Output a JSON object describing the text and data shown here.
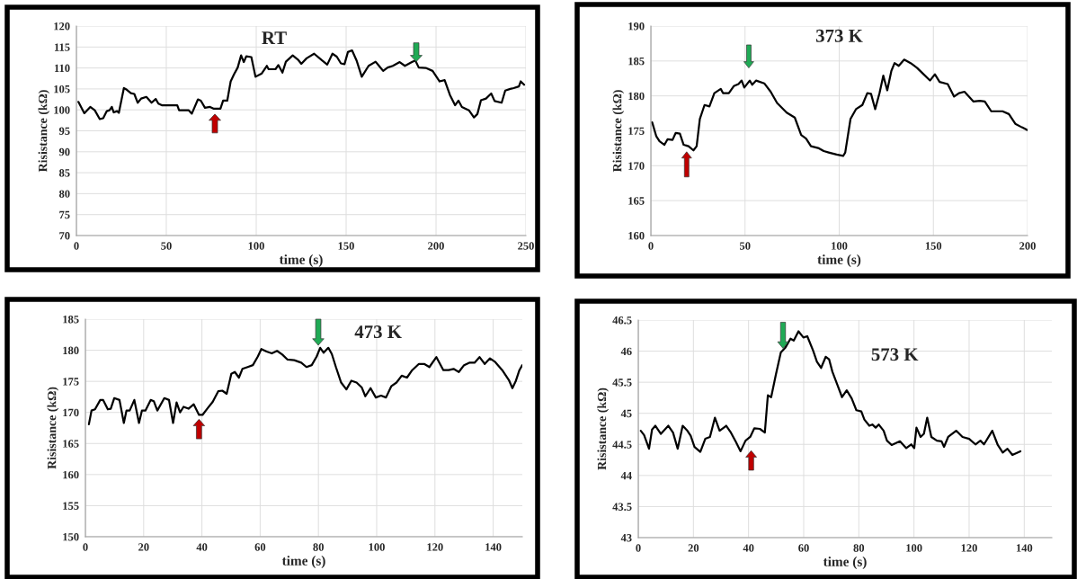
{
  "chart_data": [
    {
      "type": "line",
      "title": "RT",
      "xlabel": "time (s)",
      "ylabel": "Risistance (kΩ)",
      "color": "#000000",
      "grid": true,
      "xlim": [
        0,
        250
      ],
      "xticks": [
        0,
        50,
        100,
        150,
        200,
        250
      ],
      "ylim": [
        70,
        120
      ],
      "yticks": [
        70,
        75,
        80,
        85,
        90,
        95,
        100,
        105,
        110,
        115,
        120
      ],
      "x": [
        1.1,
        4.4,
        7.7,
        10.2,
        13,
        14.9,
        16.9,
        18.4,
        19.7,
        20.7,
        22.6,
        23.6,
        26.4,
        28,
        30.3,
        32.2,
        34.1,
        36,
        38.9,
        41.8,
        44.1,
        45.6,
        47.5,
        56.1,
        57.1,
        62.5,
        64.2,
        67.6,
        69.2,
        71.5,
        74.3,
        76.2,
        80.1,
        81.6,
        83.9,
        85.8,
        87.7,
        89.7,
        91.6,
        93.1,
        94.5,
        97.3,
        99.6,
        103.1,
        105.9,
        106.9,
        110.7,
        112.3,
        114.6,
        116.5,
        120.3,
        123.2,
        125.1,
        128,
        132.2,
        136.6,
        139.5,
        142.4,
        144.8,
        147.1,
        149.1,
        151,
        153.3,
        155.8,
        158.7,
        162.5,
        166.4,
        168.3,
        170.6,
        173.1,
        176,
        179.8,
        182.7,
        186.6,
        188.5,
        190.4,
        194.3,
        198.1,
        202,
        204.8,
        207.7,
        210.6,
        212.5,
        214.4,
        218.3,
        221.1,
        223,
        225,
        227.8,
        230.7,
        232.6,
        236.5,
        238.5,
        241.3,
        243.2,
        246.1,
        247.1,
        249
      ],
      "values": [
        101.9,
        99.2,
        100.7,
        99.9,
        97.8,
        98,
        99.7,
        99.9,
        100.7,
        99.4,
        99.7,
        99.3,
        105.2,
        104.8,
        104,
        103.8,
        101.7,
        102.7,
        103.1,
        101.7,
        102.6,
        101.5,
        101.1,
        101.1,
        99.9,
        99.9,
        99.1,
        102.5,
        102.2,
        100.5,
        100.7,
        100.3,
        100.3,
        102.2,
        102.2,
        106.8,
        108.5,
        110.1,
        113,
        111.4,
        112.8,
        112.6,
        107.9,
        108.7,
        110.5,
        109.7,
        109.7,
        110.7,
        108.9,
        111.5,
        113,
        112,
        111,
        112.3,
        113.4,
        111.8,
        110.8,
        113.4,
        112.7,
        111.1,
        110.9,
        113.8,
        114.2,
        111.8,
        107.9,
        110.5,
        111.5,
        110.5,
        109.3,
        110.1,
        110.5,
        111.4,
        110.5,
        111.4,
        111.8,
        110.1,
        110,
        109.3,
        106.8,
        107.1,
        103.6,
        101.1,
        102.2,
        100.7,
        99.9,
        98.2,
        99,
        102.3,
        102.7,
        103.9,
        102.1,
        101.7,
        104.6,
        105,
        105.2,
        105.6,
        106.8,
        106
      ]
    },
    {
      "type": "line",
      "title": "373 K",
      "xlabel": "time (s)",
      "ylabel": "Risistance (kΩ)",
      "color": "#000000",
      "grid": true,
      "xlim": [
        0,
        200
      ],
      "xticks": [
        0,
        50,
        100,
        150,
        200
      ],
      "ylim": [
        160,
        190
      ],
      "yticks": [
        160,
        165,
        170,
        175,
        180,
        185,
        190
      ],
      "x": [
        0.7,
        2.9,
        4.6,
        7.2,
        8.9,
        11.5,
        13.2,
        15.4,
        17.4,
        20,
        22.6,
        24.3,
        26,
        28.5,
        31.1,
        33.7,
        37.1,
        38.3,
        41.4,
        44,
        46.5,
        48.2,
        49.6,
        52.5,
        53.8,
        55.9,
        60.2,
        63.6,
        67,
        72.1,
        76.4,
        79.8,
        82.4,
        85,
        89.2,
        91.8,
        94.4,
        98.6,
        102.1,
        103.2,
        106,
        108.9,
        112.3,
        114.9,
        116.9,
        119.1,
        121.4,
        123.4,
        125.5,
        127.7,
        129.4,
        131.6,
        134.5,
        137.9,
        141.4,
        144.8,
        148.2,
        150.8,
        153.3,
        157.6,
        161,
        163.6,
        166.5,
        171.3,
        174.7,
        177.3,
        180.7,
        183.2,
        186.7,
        190.1,
        193.5,
        197,
        200
      ],
      "values": [
        176.2,
        174.2,
        173.5,
        173,
        173.8,
        173.7,
        174.7,
        174.6,
        173,
        172.8,
        172.2,
        172.8,
        176.7,
        178.7,
        178.5,
        180.4,
        181,
        180.4,
        180.4,
        181.4,
        181.7,
        182.2,
        181.2,
        182.2,
        181.6,
        182.2,
        181.8,
        180.6,
        179,
        177.6,
        176.9,
        174.4,
        173.9,
        172.8,
        172.5,
        172.1,
        171.9,
        171.6,
        171.4,
        171.9,
        176.7,
        178.1,
        178.7,
        180.4,
        180.3,
        178.1,
        180.4,
        182.9,
        180.8,
        183.6,
        184.7,
        184.3,
        185.2,
        184.7,
        184,
        183.1,
        182.2,
        183.1,
        182,
        181.7,
        179.9,
        180.4,
        180.6,
        179.2,
        179.3,
        179.2,
        177.8,
        177.8,
        177.8,
        177.4,
        176,
        175.5,
        175.1
      ]
    },
    {
      "type": "line",
      "title": "473 K",
      "xlabel": "time (s)",
      "ylabel": "Risistance (kΩ)",
      "color": "#000000",
      "grid": true,
      "xlim": [
        0,
        150
      ],
      "xticks": [
        0,
        20,
        40,
        60,
        80,
        100,
        120,
        140
      ],
      "ylim": [
        150,
        185
      ],
      "yticks": [
        150,
        155,
        160,
        165,
        170,
        175,
        180,
        185
      ],
      "x": [
        1.2,
        2.1,
        3.3,
        5.1,
        6.1,
        7.7,
        8.7,
        9.9,
        11.7,
        13.2,
        14.1,
        15.2,
        16.8,
        18.4,
        19.4,
        20.6,
        22.4,
        23.5,
        24.7,
        27.1,
        28.7,
        30.1,
        31.3,
        32.5,
        33.7,
        35.4,
        37.2,
        39,
        40.2,
        42,
        43.7,
        45.6,
        47,
        48.5,
        50.1,
        51.3,
        52.7,
        53.9,
        55.7,
        57.5,
        59.2,
        60.4,
        62.2,
        64,
        65.8,
        67.6,
        69.4,
        71.7,
        74.1,
        75.9,
        77.7,
        79.4,
        80.6,
        81.8,
        83.4,
        84.6,
        86,
        87.8,
        89.6,
        91.3,
        93.1,
        94.9,
        96.1,
        97.9,
        99.7,
        101.5,
        103.2,
        105,
        106.8,
        108.6,
        110.4,
        112.2,
        114.5,
        116.3,
        118.1,
        120.5,
        122.9,
        124.7,
        126.4,
        128.2,
        130,
        131.8,
        133.6,
        135.3,
        137.1,
        138.9,
        140.7,
        143.1,
        145.4,
        146.6,
        147.8,
        149,
        150
      ],
      "values": [
        168.1,
        170.3,
        170.5,
        172,
        172,
        170.5,
        170.6,
        172.3,
        172,
        168.3,
        170.3,
        170.3,
        172,
        168.3,
        170.3,
        170.3,
        172,
        171.8,
        170.3,
        172.3,
        172,
        168.3,
        171.6,
        170,
        170.9,
        170.6,
        171.3,
        169.6,
        169.6,
        170.7,
        171.7,
        173.4,
        173.5,
        173,
        176.2,
        176.5,
        175.6,
        177,
        177.3,
        177.6,
        179,
        180.2,
        179.8,
        179.5,
        179.9,
        179.3,
        178.5,
        178.4,
        178,
        177.3,
        177.6,
        179,
        180.4,
        179.6,
        180.4,
        179.4,
        177.3,
        174.8,
        173.7,
        175.1,
        174.8,
        174,
        172.6,
        173.9,
        172.4,
        172.7,
        172.4,
        174.2,
        174.8,
        175.9,
        175.6,
        176.8,
        177.8,
        177.8,
        177.3,
        178.9,
        176.8,
        176.8,
        177,
        176.5,
        177.6,
        178,
        178,
        178.9,
        177.8,
        178.7,
        178.1,
        176.8,
        175.2,
        173.9,
        175.1,
        176.8,
        177.6
      ]
    },
    {
      "type": "line",
      "title": "573 K",
      "xlabel": "time (s)",
      "ylabel": "Risistance (kΩ)",
      "color": "#000000",
      "grid": true,
      "xlim": [
        0,
        150
      ],
      "xticks": [
        0,
        20,
        40,
        60,
        80,
        100,
        120,
        140
      ],
      "ylim": [
        43,
        46.5
      ],
      "yticks": [
        43,
        43.5,
        44,
        44.5,
        45,
        45.5,
        46,
        46.5
      ],
      "x": [
        0.9,
        2.1,
        3.9,
        5,
        6.2,
        8.2,
        10.9,
        12.6,
        14.3,
        16.1,
        17.8,
        19,
        20.4,
        22.5,
        24.3,
        26,
        27.8,
        29.5,
        31.9,
        33.6,
        35.4,
        37.1,
        38.9,
        40.6,
        42.1,
        44.1,
        45.9,
        47,
        48.2,
        49.9,
        51.7,
        53.4,
        55.2,
        56.4,
        58.1,
        59.9,
        61.3,
        63.4,
        64.8,
        66.3,
        68,
        69.2,
        70.4,
        72.1,
        73.9,
        75.6,
        77.4,
        79.1,
        80.9,
        82,
        83.8,
        84.9,
        86.1,
        87.2,
        89,
        90.2,
        91.9,
        94.9,
        97.2,
        99,
        100.1,
        100.9,
        102.4,
        103.6,
        104.8,
        106.3,
        108.3,
        110,
        110.9,
        112.4,
        115.3,
        117.6,
        120,
        122.3,
        124.1,
        125.4,
        128.4,
        130.4,
        132.2,
        133.9,
        135.7,
        138.6
      ],
      "values": [
        44.72,
        44.65,
        44.43,
        44.74,
        44.8,
        44.67,
        44.8,
        44.69,
        44.43,
        44.8,
        44.72,
        44.64,
        44.46,
        44.38,
        44.59,
        44.62,
        44.93,
        44.72,
        44.8,
        44.69,
        44.54,
        44.39,
        44.56,
        44.62,
        44.76,
        44.75,
        44.69,
        45.29,
        45.26,
        45.62,
        45.98,
        46.06,
        46.2,
        46.17,
        46.32,
        46.22,
        46.24,
        46.01,
        45.83,
        45.73,
        45.91,
        45.87,
        45.67,
        45.47,
        45.26,
        45.37,
        45.24,
        45.05,
        45.03,
        44.9,
        44.8,
        44.82,
        44.77,
        44.82,
        44.72,
        44.56,
        44.49,
        44.55,
        44.44,
        44.5,
        44.44,
        44.77,
        44.62,
        44.67,
        44.93,
        44.62,
        44.56,
        44.55,
        44.46,
        44.62,
        44.72,
        44.62,
        44.59,
        44.5,
        44.56,
        44.5,
        44.72,
        44.49,
        44.37,
        44.43,
        44.33,
        44.39
      ]
    }
  ]
}
